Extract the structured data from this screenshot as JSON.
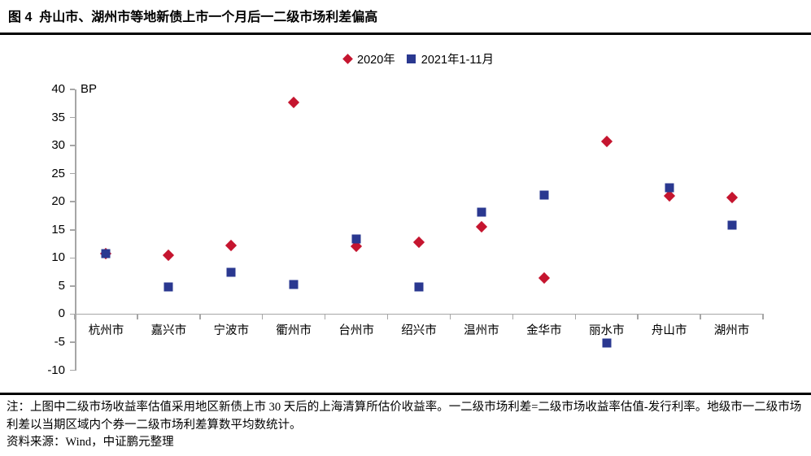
{
  "figure": {
    "title": "图 4  舟山市、湖州市等地新债上市一个月后一二级市场利差偏高",
    "note": "注：上图中二级市场收益率估值采用地区新债上市 30 天后的上海清算所估价收益率。一二级市场利差=二级市场收益率估值-发行利率。地级市一二级市场利差以当期区域内个券一二级市场利差算数平均数统计。",
    "source": "资料来源：Wind，中证鹏元整理"
  },
  "chart_data": {
    "type": "scatter",
    "title": "舟山市、湖州市等地新债上市一个月后一二级市场利差偏高",
    "unit_label": "BP",
    "ylabel": "BP",
    "xlabel": "",
    "ylim": [
      -10,
      40
    ],
    "ytick_step": 5,
    "grid": false,
    "legend_position": "top-center",
    "axis_color": "#A6A6A6",
    "categories": [
      "杭州市",
      "嘉兴市",
      "宁波市",
      "衢州市",
      "台州市",
      "绍兴市",
      "温州市",
      "金华市",
      "丽水市",
      "舟山市",
      "湖州市"
    ],
    "series": [
      {
        "name": "2020年",
        "marker": "diamond",
        "color": "#C5152F",
        "values": [
          10.7,
          10.5,
          12.2,
          37.7,
          12.0,
          12.8,
          15.6,
          6.4,
          30.7,
          21.0,
          20.8
        ]
      },
      {
        "name": "2021年1-11月",
        "marker": "square",
        "color": "#2A3890",
        "values": [
          10.8,
          4.9,
          7.5,
          5.3,
          13.3,
          4.8,
          18.1,
          21.2,
          -5.2,
          22.5,
          15.8
        ]
      }
    ]
  }
}
